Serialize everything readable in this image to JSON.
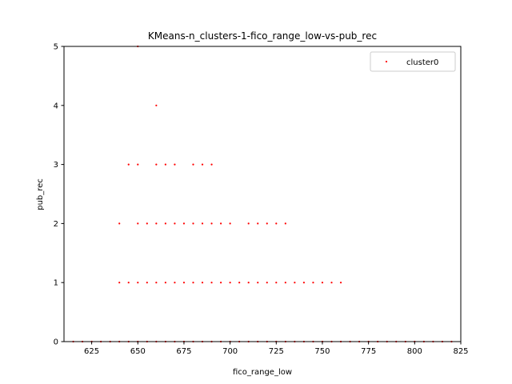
{
  "chart_data": {
    "type": "scatter",
    "title": "KMeans-n_clusters-1-fico_range_low-vs-pub_rec",
    "xlabel": "fico_range_low",
    "ylabel": "pub_rec",
    "xlim": [
      610,
      825
    ],
    "ylim": [
      0,
      5
    ],
    "xticks": [
      625,
      650,
      675,
      700,
      725,
      750,
      775,
      800,
      825
    ],
    "yticks": [
      0,
      1,
      2,
      3,
      4,
      5
    ],
    "grid": false,
    "legend_position": "top-right",
    "series": [
      {
        "name": "cluster0",
        "color": "#ff0000",
        "points": [
          [
            615,
            0
          ],
          [
            620,
            0
          ],
          [
            625,
            0
          ],
          [
            630,
            0
          ],
          [
            635,
            0
          ],
          [
            640,
            0
          ],
          [
            645,
            0
          ],
          [
            650,
            0
          ],
          [
            655,
            0
          ],
          [
            660,
            0
          ],
          [
            665,
            0
          ],
          [
            670,
            0
          ],
          [
            675,
            0
          ],
          [
            680,
            0
          ],
          [
            685,
            0
          ],
          [
            690,
            0
          ],
          [
            695,
            0
          ],
          [
            700,
            0
          ],
          [
            705,
            0
          ],
          [
            710,
            0
          ],
          [
            715,
            0
          ],
          [
            720,
            0
          ],
          [
            725,
            0
          ],
          [
            730,
            0
          ],
          [
            735,
            0
          ],
          [
            740,
            0
          ],
          [
            745,
            0
          ],
          [
            750,
            0
          ],
          [
            755,
            0
          ],
          [
            760,
            0
          ],
          [
            765,
            0
          ],
          [
            770,
            0
          ],
          [
            775,
            0
          ],
          [
            780,
            0
          ],
          [
            785,
            0
          ],
          [
            790,
            0
          ],
          [
            795,
            0
          ],
          [
            800,
            0
          ],
          [
            805,
            0
          ],
          [
            810,
            0
          ],
          [
            815,
            0
          ],
          [
            820,
            0
          ],
          [
            640,
            1
          ],
          [
            645,
            1
          ],
          [
            650,
            1
          ],
          [
            655,
            1
          ],
          [
            660,
            1
          ],
          [
            665,
            1
          ],
          [
            670,
            1
          ],
          [
            675,
            1
          ],
          [
            680,
            1
          ],
          [
            685,
            1
          ],
          [
            690,
            1
          ],
          [
            695,
            1
          ],
          [
            700,
            1
          ],
          [
            705,
            1
          ],
          [
            710,
            1
          ],
          [
            715,
            1
          ],
          [
            720,
            1
          ],
          [
            725,
            1
          ],
          [
            730,
            1
          ],
          [
            735,
            1
          ],
          [
            740,
            1
          ],
          [
            745,
            1
          ],
          [
            750,
            1
          ],
          [
            755,
            1
          ],
          [
            760,
            1
          ],
          [
            640,
            2
          ],
          [
            650,
            2
          ],
          [
            655,
            2
          ],
          [
            660,
            2
          ],
          [
            665,
            2
          ],
          [
            670,
            2
          ],
          [
            675,
            2
          ],
          [
            680,
            2
          ],
          [
            685,
            2
          ],
          [
            690,
            2
          ],
          [
            695,
            2
          ],
          [
            700,
            2
          ],
          [
            710,
            2
          ],
          [
            715,
            2
          ],
          [
            720,
            2
          ],
          [
            725,
            2
          ],
          [
            730,
            2
          ],
          [
            645,
            3
          ],
          [
            650,
            3
          ],
          [
            660,
            3
          ],
          [
            665,
            3
          ],
          [
            670,
            3
          ],
          [
            680,
            3
          ],
          [
            685,
            3
          ],
          [
            690,
            3
          ],
          [
            660,
            4
          ],
          [
            650,
            5
          ]
        ]
      }
    ]
  }
}
